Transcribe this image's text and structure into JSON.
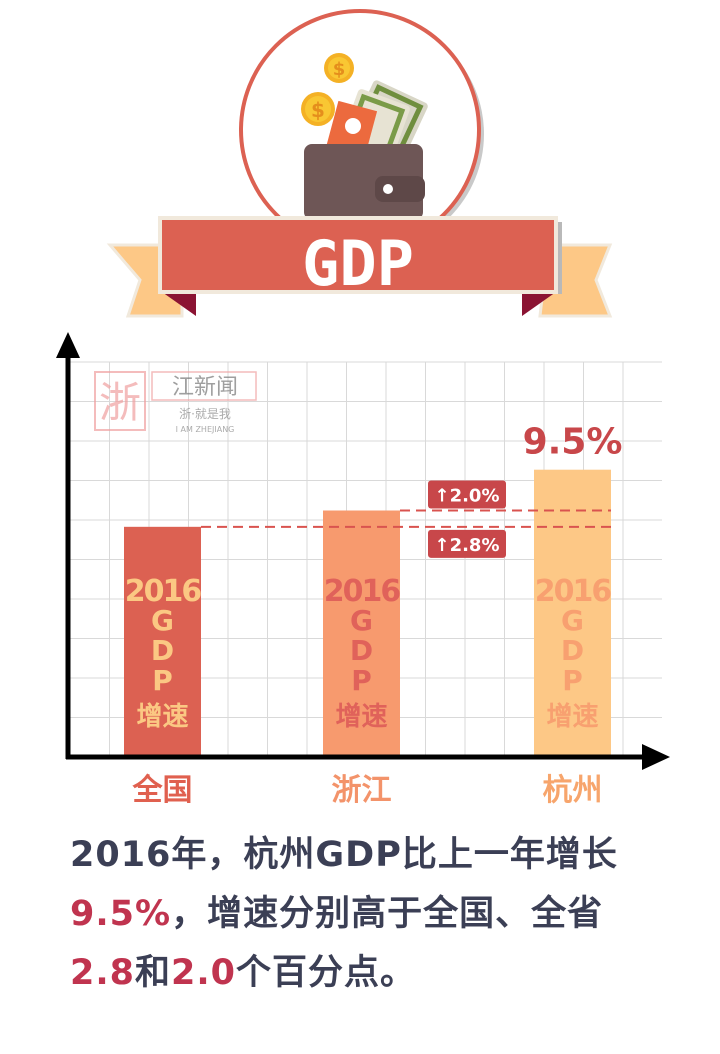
{
  "header": {
    "badge_text": "GDP",
    "icons": [
      "wallet-icon",
      "coin-icon",
      "banknote-icon"
    ]
  },
  "watermark": {
    "logo_char": "浙",
    "name": "江新闻",
    "slogan": "浙·就是我",
    "slogan_en": "I AM ZHEJIANG"
  },
  "chart_data": {
    "type": "bar",
    "title": "",
    "xlabel": "",
    "ylabel": "",
    "grid": true,
    "categories": [
      "全国",
      "浙江",
      "杭州"
    ],
    "values": [
      6.7,
      7.5,
      9.5
    ],
    "bar_inner_label": [
      "2016",
      "G",
      "D",
      "P",
      "增速"
    ],
    "value_label": "9.5%",
    "annotations": [
      {
        "text": "↑2.0%",
        "from": "浙江",
        "to": "杭州",
        "value": 2.0
      },
      {
        "text": "↑2.8%",
        "from": "全国",
        "to": "杭州",
        "value": 2.8
      }
    ],
    "colors": {
      "bars": [
        "#dc6152",
        "#f79a6e",
        "#fdc886"
      ],
      "bar_text": [
        "#fbc883",
        "#e0625a",
        "#f8a070"
      ],
      "category_text": [
        "#e0604f",
        "#f3936a",
        "#f7a56c"
      ],
      "annotation": "#c8474a"
    }
  },
  "caption": {
    "line1": "2016年，杭州GDP比上一年增长",
    "line2_highlight": "9.5%",
    "line2_rest": "，增速分别高于全国、全省",
    "line3_h1": "2.8",
    "line3_mid": "和",
    "line3_h2": "2.0",
    "line3_rest": "个百分点。",
    "text_color": "#3b3f55",
    "highlight_color": "#c0344f"
  }
}
